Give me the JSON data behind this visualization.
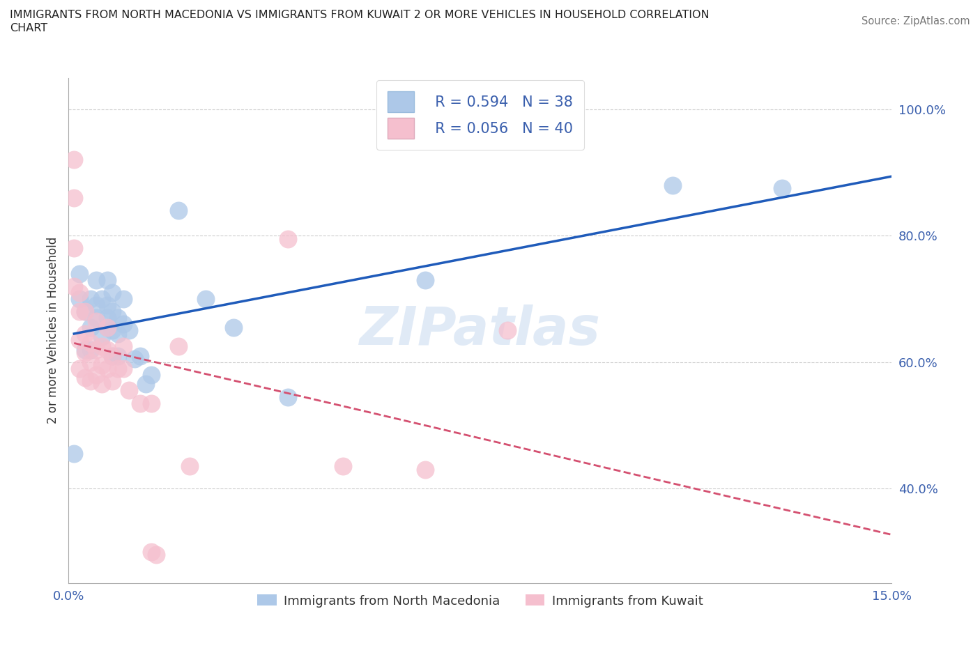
{
  "title": "IMMIGRANTS FROM NORTH MACEDONIA VS IMMIGRANTS FROM KUWAIT 2 OR MORE VEHICLES IN HOUSEHOLD CORRELATION\nCHART",
  "source": "Source: ZipAtlas.com",
  "ylabel": "2 or more Vehicles in Household",
  "xlim": [
    0.0,
    0.15
  ],
  "ylim": [
    0.25,
    1.05
  ],
  "xticks": [
    0.0,
    0.03,
    0.06,
    0.09,
    0.12,
    0.15
  ],
  "xticklabels": [
    "0.0%",
    "",
    "",
    "",
    "",
    "15.0%"
  ],
  "yticks": [
    0.4,
    0.6,
    0.8,
    1.0
  ],
  "yticklabels": [
    "40.0%",
    "60.0%",
    "80.0%",
    "100.0%"
  ],
  "blue_R": 0.594,
  "blue_N": 38,
  "pink_R": 0.056,
  "pink_N": 40,
  "blue_color": "#adc8e8",
  "pink_color": "#f5bfce",
  "blue_line_color": "#1f5bba",
  "pink_line_color": "#d45070",
  "grid_color": "#cccccc",
  "watermark": "ZIPatlas",
  "legend_label_blue": "Immigrants from North Macedonia",
  "legend_label_pink": "Immigrants from Kuwait",
  "blue_scatter_x": [
    0.001,
    0.002,
    0.002,
    0.003,
    0.003,
    0.004,
    0.004,
    0.004,
    0.005,
    0.005,
    0.005,
    0.006,
    0.006,
    0.007,
    0.007,
    0.007,
    0.007,
    0.008,
    0.008,
    0.008,
    0.008,
    0.009,
    0.009,
    0.009,
    0.01,
    0.01,
    0.011,
    0.012,
    0.013,
    0.014,
    0.015,
    0.02,
    0.025,
    0.03,
    0.04,
    0.065,
    0.11,
    0.13
  ],
  "blue_scatter_y": [
    0.455,
    0.74,
    0.7,
    0.62,
    0.68,
    0.655,
    0.7,
    0.62,
    0.67,
    0.69,
    0.73,
    0.7,
    0.64,
    0.655,
    0.67,
    0.69,
    0.73,
    0.61,
    0.65,
    0.68,
    0.71,
    0.61,
    0.645,
    0.67,
    0.66,
    0.7,
    0.65,
    0.605,
    0.61,
    0.565,
    0.58,
    0.84,
    0.7,
    0.655,
    0.545,
    0.73,
    0.88,
    0.875
  ],
  "pink_scatter_x": [
    0.001,
    0.001,
    0.001,
    0.001,
    0.002,
    0.002,
    0.002,
    0.002,
    0.003,
    0.003,
    0.003,
    0.003,
    0.004,
    0.004,
    0.004,
    0.005,
    0.005,
    0.005,
    0.006,
    0.006,
    0.006,
    0.007,
    0.007,
    0.007,
    0.008,
    0.008,
    0.009,
    0.01,
    0.01,
    0.011,
    0.013,
    0.015,
    0.015,
    0.016,
    0.02,
    0.022,
    0.04,
    0.05,
    0.065,
    0.08
  ],
  "pink_scatter_y": [
    0.92,
    0.86,
    0.78,
    0.72,
    0.71,
    0.68,
    0.635,
    0.59,
    0.68,
    0.645,
    0.615,
    0.575,
    0.63,
    0.6,
    0.57,
    0.665,
    0.62,
    0.58,
    0.625,
    0.595,
    0.565,
    0.655,
    0.62,
    0.59,
    0.61,
    0.57,
    0.59,
    0.625,
    0.59,
    0.555,
    0.535,
    0.535,
    0.3,
    0.295,
    0.625,
    0.435,
    0.795,
    0.435,
    0.43,
    0.65
  ]
}
